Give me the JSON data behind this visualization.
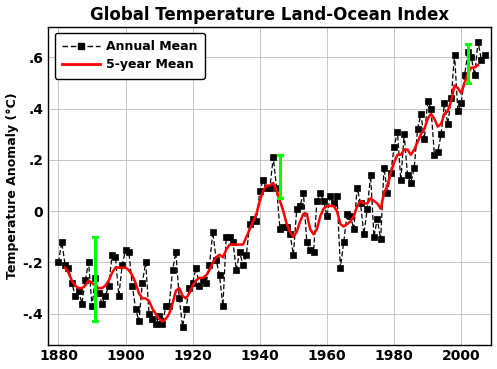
{
  "title": "Global Temperature Land-Ocean Index",
  "ylabel": "Temperature Anomaly (°C)",
  "xlim": [
    1877,
    2009
  ],
  "ylim": [
    -0.52,
    0.72
  ],
  "yticks": [
    -0.4,
    -0.2,
    0.0,
    0.2,
    0.4,
    0.6
  ],
  "ytick_labels": [
    "-.4",
    "-.2",
    "0",
    ".2",
    ".4",
    ".6"
  ],
  "xticks": [
    1880,
    1900,
    1920,
    1940,
    1960,
    1980,
    2000
  ],
  "annual_mean": [
    [
      1880,
      -0.2
    ],
    [
      1881,
      -0.12
    ],
    [
      1882,
      -0.21
    ],
    [
      1883,
      -0.22
    ],
    [
      1884,
      -0.28
    ],
    [
      1885,
      -0.33
    ],
    [
      1886,
      -0.31
    ],
    [
      1887,
      -0.36
    ],
    [
      1888,
      -0.27
    ],
    [
      1889,
      -0.2
    ],
    [
      1890,
      -0.37
    ],
    [
      1891,
      -0.26
    ],
    [
      1892,
      -0.32
    ],
    [
      1893,
      -0.36
    ],
    [
      1894,
      -0.33
    ],
    [
      1895,
      -0.29
    ],
    [
      1896,
      -0.17
    ],
    [
      1897,
      -0.18
    ],
    [
      1898,
      -0.33
    ],
    [
      1899,
      -0.21
    ],
    [
      1900,
      -0.15
    ],
    [
      1901,
      -0.16
    ],
    [
      1902,
      -0.29
    ],
    [
      1903,
      -0.38
    ],
    [
      1904,
      -0.43
    ],
    [
      1905,
      -0.28
    ],
    [
      1906,
      -0.2
    ],
    [
      1907,
      -0.4
    ],
    [
      1908,
      -0.42
    ],
    [
      1909,
      -0.44
    ],
    [
      1910,
      -0.41
    ],
    [
      1911,
      -0.44
    ],
    [
      1912,
      -0.37
    ],
    [
      1913,
      -0.37
    ],
    [
      1914,
      -0.23
    ],
    [
      1915,
      -0.16
    ],
    [
      1916,
      -0.34
    ],
    [
      1917,
      -0.45
    ],
    [
      1918,
      -0.38
    ],
    [
      1919,
      -0.3
    ],
    [
      1920,
      -0.28
    ],
    [
      1921,
      -0.22
    ],
    [
      1922,
      -0.29
    ],
    [
      1923,
      -0.27
    ],
    [
      1924,
      -0.28
    ],
    [
      1925,
      -0.21
    ],
    [
      1926,
      -0.08
    ],
    [
      1927,
      -0.19
    ],
    [
      1928,
      -0.25
    ],
    [
      1929,
      -0.37
    ],
    [
      1930,
      -0.1
    ],
    [
      1931,
      -0.1
    ],
    [
      1932,
      -0.12
    ],
    [
      1933,
      -0.23
    ],
    [
      1934,
      -0.16
    ],
    [
      1935,
      -0.21
    ],
    [
      1936,
      -0.17
    ],
    [
      1937,
      -0.05
    ],
    [
      1938,
      -0.03
    ],
    [
      1939,
      -0.04
    ],
    [
      1940,
      0.08
    ],
    [
      1941,
      0.12
    ],
    [
      1942,
      0.09
    ],
    [
      1943,
      0.09
    ],
    [
      1944,
      0.21
    ],
    [
      1945,
      0.09
    ],
    [
      1946,
      -0.07
    ],
    [
      1947,
      -0.06
    ],
    [
      1948,
      -0.06
    ],
    [
      1949,
      -0.09
    ],
    [
      1950,
      -0.17
    ],
    [
      1951,
      0.01
    ],
    [
      1952,
      0.02
    ],
    [
      1953,
      0.07
    ],
    [
      1954,
      -0.12
    ],
    [
      1955,
      -0.15
    ],
    [
      1956,
      -0.16
    ],
    [
      1957,
      0.04
    ],
    [
      1958,
      0.07
    ],
    [
      1959,
      0.04
    ],
    [
      1960,
      -0.02
    ],
    [
      1961,
      0.06
    ],
    [
      1962,
      0.03
    ],
    [
      1963,
      0.06
    ],
    [
      1964,
      -0.22
    ],
    [
      1965,
      -0.12
    ],
    [
      1966,
      -0.01
    ],
    [
      1967,
      -0.02
    ],
    [
      1968,
      -0.07
    ],
    [
      1969,
      0.09
    ],
    [
      1970,
      0.03
    ],
    [
      1971,
      -0.09
    ],
    [
      1972,
      0.01
    ],
    [
      1973,
      0.14
    ],
    [
      1974,
      -0.1
    ],
    [
      1975,
      -0.03
    ],
    [
      1976,
      -0.11
    ],
    [
      1977,
      0.17
    ],
    [
      1978,
      0.07
    ],
    [
      1979,
      0.15
    ],
    [
      1980,
      0.25
    ],
    [
      1981,
      0.31
    ],
    [
      1982,
      0.12
    ],
    [
      1983,
      0.3
    ],
    [
      1984,
      0.14
    ],
    [
      1985,
      0.11
    ],
    [
      1986,
      0.17
    ],
    [
      1987,
      0.32
    ],
    [
      1988,
      0.38
    ],
    [
      1989,
      0.28
    ],
    [
      1990,
      0.43
    ],
    [
      1991,
      0.4
    ],
    [
      1992,
      0.22
    ],
    [
      1993,
      0.23
    ],
    [
      1994,
      0.3
    ],
    [
      1995,
      0.42
    ],
    [
      1996,
      0.34
    ],
    [
      1997,
      0.44
    ],
    [
      1998,
      0.61
    ],
    [
      1999,
      0.39
    ],
    [
      2000,
      0.42
    ],
    [
      2001,
      0.53
    ],
    [
      2002,
      0.62
    ],
    [
      2003,
      0.6
    ],
    [
      2004,
      0.53
    ],
    [
      2005,
      0.66
    ],
    [
      2006,
      0.59
    ],
    [
      2007,
      0.61
    ]
  ],
  "five_year_mean": [
    [
      1882,
      -0.22
    ],
    [
      1883,
      -0.24
    ],
    [
      1884,
      -0.27
    ],
    [
      1885,
      -0.29
    ],
    [
      1886,
      -0.3
    ],
    [
      1887,
      -0.3
    ],
    [
      1888,
      -0.29
    ],
    [
      1889,
      -0.27
    ],
    [
      1890,
      -0.28
    ],
    [
      1891,
      -0.29
    ],
    [
      1892,
      -0.3
    ],
    [
      1893,
      -0.3
    ],
    [
      1894,
      -0.29
    ],
    [
      1895,
      -0.27
    ],
    [
      1896,
      -0.24
    ],
    [
      1897,
      -0.22
    ],
    [
      1898,
      -0.22
    ],
    [
      1899,
      -0.22
    ],
    [
      1900,
      -0.22
    ],
    [
      1901,
      -0.23
    ],
    [
      1902,
      -0.25
    ],
    [
      1903,
      -0.28
    ],
    [
      1904,
      -0.32
    ],
    [
      1905,
      -0.34
    ],
    [
      1906,
      -0.34
    ],
    [
      1907,
      -0.35
    ],
    [
      1908,
      -0.38
    ],
    [
      1909,
      -0.4
    ],
    [
      1910,
      -0.42
    ],
    [
      1911,
      -0.43
    ],
    [
      1912,
      -0.42
    ],
    [
      1913,
      -0.4
    ],
    [
      1914,
      -0.36
    ],
    [
      1915,
      -0.31
    ],
    [
      1916,
      -0.3
    ],
    [
      1917,
      -0.33
    ],
    [
      1918,
      -0.34
    ],
    [
      1919,
      -0.32
    ],
    [
      1920,
      -0.29
    ],
    [
      1921,
      -0.27
    ],
    [
      1922,
      -0.26
    ],
    [
      1923,
      -0.26
    ],
    [
      1924,
      -0.25
    ],
    [
      1925,
      -0.23
    ],
    [
      1926,
      -0.2
    ],
    [
      1927,
      -0.18
    ],
    [
      1928,
      -0.17
    ],
    [
      1929,
      -0.18
    ],
    [
      1930,
      -0.15
    ],
    [
      1931,
      -0.13
    ],
    [
      1932,
      -0.13
    ],
    [
      1933,
      -0.13
    ],
    [
      1934,
      -0.13
    ],
    [
      1935,
      -0.13
    ],
    [
      1936,
      -0.1
    ],
    [
      1937,
      -0.07
    ],
    [
      1938,
      -0.04
    ],
    [
      1939,
      -0.01
    ],
    [
      1940,
      0.04
    ],
    [
      1941,
      0.08
    ],
    [
      1942,
      0.1
    ],
    [
      1943,
      0.1
    ],
    [
      1944,
      0.11
    ],
    [
      1945,
      0.08
    ],
    [
      1946,
      0.04
    ],
    [
      1947,
      0.0
    ],
    [
      1948,
      -0.05
    ],
    [
      1949,
      -0.08
    ],
    [
      1950,
      -0.1
    ],
    [
      1951,
      -0.08
    ],
    [
      1952,
      -0.04
    ],
    [
      1953,
      -0.01
    ],
    [
      1954,
      -0.01
    ],
    [
      1955,
      -0.07
    ],
    [
      1956,
      -0.09
    ],
    [
      1957,
      -0.07
    ],
    [
      1958,
      -0.02
    ],
    [
      1959,
      0.01
    ],
    [
      1960,
      0.02
    ],
    [
      1961,
      0.02
    ],
    [
      1962,
      0.02
    ],
    [
      1963,
      0.0
    ],
    [
      1964,
      -0.05
    ],
    [
      1965,
      -0.06
    ],
    [
      1966,
      -0.05
    ],
    [
      1967,
      -0.04
    ],
    [
      1968,
      -0.02
    ],
    [
      1969,
      0.02
    ],
    [
      1970,
      0.04
    ],
    [
      1971,
      0.03
    ],
    [
      1972,
      0.03
    ],
    [
      1973,
      0.05
    ],
    [
      1974,
      0.04
    ],
    [
      1975,
      0.03
    ],
    [
      1976,
      0.01
    ],
    [
      1977,
      0.07
    ],
    [
      1978,
      0.1
    ],
    [
      1979,
      0.15
    ],
    [
      1980,
      0.19
    ],
    [
      1981,
      0.22
    ],
    [
      1982,
      0.22
    ],
    [
      1983,
      0.24
    ],
    [
      1984,
      0.24
    ],
    [
      1985,
      0.22
    ],
    [
      1986,
      0.24
    ],
    [
      1987,
      0.27
    ],
    [
      1988,
      0.3
    ],
    [
      1989,
      0.32
    ],
    [
      1990,
      0.36
    ],
    [
      1991,
      0.38
    ],
    [
      1992,
      0.36
    ],
    [
      1993,
      0.33
    ],
    [
      1994,
      0.34
    ],
    [
      1995,
      0.38
    ],
    [
      1996,
      0.39
    ],
    [
      1997,
      0.43
    ],
    [
      1998,
      0.49
    ],
    [
      1999,
      0.48
    ],
    [
      2000,
      0.46
    ],
    [
      2001,
      0.5
    ],
    [
      2002,
      0.54
    ],
    [
      2003,
      0.56
    ],
    [
      2004,
      0.56
    ],
    [
      2005,
      0.57
    ]
  ],
  "error_bars": [
    {
      "year": 1891,
      "low": -0.43,
      "high": -0.1
    },
    {
      "year": 1946,
      "low": 0.05,
      "high": 0.22
    },
    {
      "year": 2002,
      "low": 0.5,
      "high": 0.65
    }
  ],
  "line_color": "red",
  "marker_color": "black",
  "error_bar_color": "#00ff00",
  "bg_color": "#ffffff",
  "grid_color": "#bbbbbb",
  "title_fontsize": 12,
  "label_fontsize": 9,
  "tick_fontsize": 10
}
